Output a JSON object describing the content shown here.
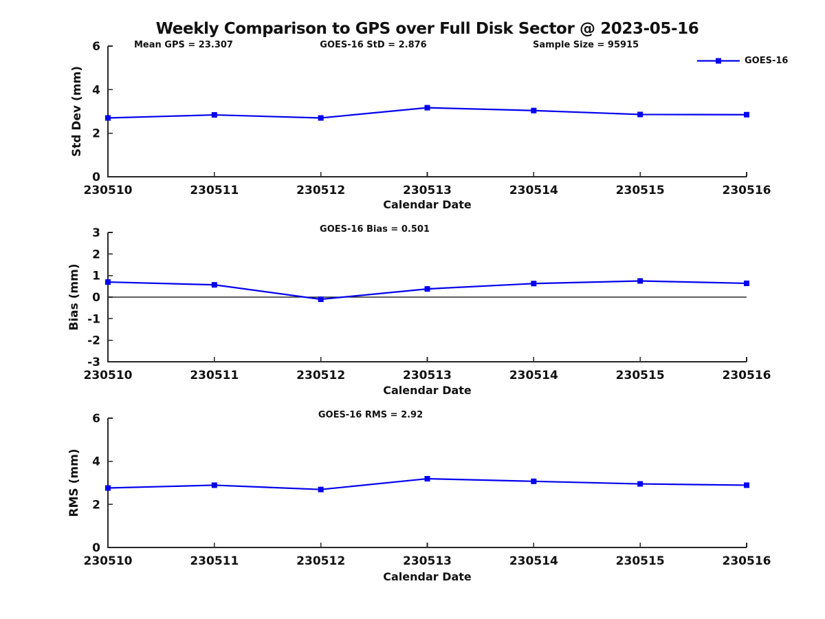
{
  "figure": {
    "title": "Weekly Comparison to GPS over Full Disk Sector @ 2023-05-16",
    "annotations": {
      "mean_gps": "Mean GPS = 23.307",
      "std": "GOES-16 StD = 2.876",
      "sample_size": "Sample Size = 95915"
    },
    "legend": {
      "label": "GOES-16"
    },
    "colors": {
      "line": "#0000ee",
      "marker": "#0000ee",
      "text": "#111111",
      "axis": "#262626",
      "zero_line": "#000000"
    }
  },
  "chart_data": [
    {
      "type": "line",
      "title": "",
      "ylabel": "Std Dev (mm)",
      "xlabel": "Calendar Date",
      "categories": [
        "230510",
        "230511",
        "230512",
        "230513",
        "230514",
        "230515",
        "230516"
      ],
      "series": [
        {
          "name": "GOES-16",
          "values": [
            2.7,
            2.84,
            2.7,
            3.17,
            3.04,
            2.86,
            2.85
          ]
        }
      ],
      "ylim": [
        0,
        6
      ],
      "yticks": [
        0,
        2,
        4,
        6
      ],
      "zero_line": false,
      "grid": false,
      "legend_position": "top-right"
    },
    {
      "type": "line",
      "title": "GOES-16 Bias  = 0.501",
      "ylabel": "Bias (mm)",
      "xlabel": "Calendar Date",
      "categories": [
        "230510",
        "230511",
        "230512",
        "230513",
        "230514",
        "230515",
        "230516"
      ],
      "series": [
        {
          "name": "GOES-16",
          "values": [
            0.7,
            0.57,
            -0.1,
            0.38,
            0.63,
            0.75,
            0.64
          ]
        }
      ],
      "ylim": [
        -3,
        3
      ],
      "yticks": [
        -3,
        -2,
        -1,
        0,
        1,
        2,
        3
      ],
      "zero_line": true,
      "grid": false,
      "legend_position": "none"
    },
    {
      "type": "line",
      "title": "GOES-16 RMS = 2.92",
      "ylabel": "RMS (mm)",
      "xlabel": "Calendar Date",
      "categories": [
        "230510",
        "230511",
        "230512",
        "230513",
        "230514",
        "230515",
        "230516"
      ],
      "series": [
        {
          "name": "GOES-16",
          "values": [
            2.76,
            2.89,
            2.69,
            3.19,
            3.07,
            2.95,
            2.89
          ]
        }
      ],
      "ylim": [
        0,
        6
      ],
      "yticks": [
        0,
        2,
        4,
        6
      ],
      "zero_line": false,
      "grid": false,
      "legend_position": "none"
    }
  ]
}
